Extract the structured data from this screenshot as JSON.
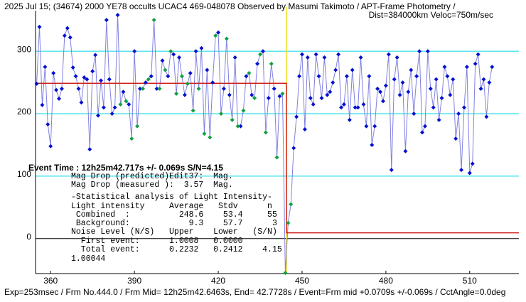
{
  "chart_data": {
    "type": "scatter",
    "title": "2025 Jul 15; (34674) 2000 YE78 occults UCAC4 469-048078 Observed by Masumi Takimoto / APT-Frame Photometry /",
    "subtitle": "Dist=384000km Veloc=750m/sec",
    "event_text": "Event Time : 12h25m42.717s +/- 0.069s S/N=4.15",
    "stats_lines": [
      "Mag Drop (predicted)Edit37:  Mag.",
      "Mag Drop (measured ):  3.57  Mag.",
      "-Statistical analysis of Light Intensity-",
      "Light intensity     Average   Stdv      n",
      " Combined  :          248.6    53.4     55",
      " Background:            9.3    57.7      3",
      "Noise Level (N/S)   Upper    Lower   (S/N)",
      "  First event:      1.0008   0.0000",
      "  Total event:      0.2232   0.2412    4.15",
      "1.00044"
    ],
    "footer": "Exp=253msec / Frm No.444.0 / Frm Mid= 12h25m42.6463s, End= 42.7728s / Event=Frm mid +0.0709s +/-0.069s / CctAngle=0.0deg",
    "xlim": [
      354.6,
      527.6
    ],
    "ylim": [
      -56,
      365
    ],
    "xticks": [
      360,
      390,
      420,
      450,
      480,
      510
    ],
    "yticks": [
      0,
      100,
      200,
      300
    ],
    "grid_color": "#00d8e8",
    "event_x": 444.4,
    "event_color": "#f0e020",
    "model": {
      "color": "#d02020",
      "x": [
        354.6,
        444.4,
        444.4,
        527.6
      ],
      "values": [
        248.6,
        248.6,
        9.3,
        9.3
      ]
    },
    "series": [
      {
        "color": "#0010d0",
        "x": [
          355,
          356,
          357,
          358,
          359,
          360,
          361,
          362,
          363,
          364,
          365,
          366,
          367,
          368,
          369,
          370,
          371,
          372,
          373,
          374,
          375,
          376,
          377,
          378,
          379,
          380,
          381,
          382,
          383,
          384,
          386,
          388,
          390,
          392,
          394,
          396,
          398,
          400,
          402,
          404,
          406,
          408,
          410,
          412,
          414,
          416,
          418,
          420,
          422,
          424,
          426,
          428,
          430,
          432,
          434,
          436,
          438,
          440,
          442,
          447,
          448,
          449,
          450,
          451,
          452,
          453,
          454,
          455,
          456,
          457,
          458,
          459,
          460,
          461,
          462,
          463,
          464,
          465,
          466,
          467,
          468,
          469,
          470,
          471,
          472,
          473,
          474,
          475,
          476,
          477,
          478,
          479,
          480,
          481,
          482,
          483,
          484,
          485,
          486,
          487,
          488,
          489,
          490,
          491,
          492,
          493,
          494,
          495,
          496,
          497,
          498,
          499,
          500,
          501,
          502,
          503,
          504,
          505,
          506,
          507,
          508,
          509,
          510,
          511,
          512,
          513,
          514,
          515,
          516,
          517,
          518
        ],
        "values": [
          248,
          339,
          214,
          275,
          183,
          148,
          265,
          238,
          224,
          240,
          325,
          337,
          322,
          274,
          260,
          240,
          218,
          258,
          255,
          143,
          268,
          294,
          197,
          253,
          210,
          350,
          255,
          200,
          210,
          358,
          235,
          215,
          300,
          240,
          250,
          260,
          240,
          285,
          260,
          295,
          290,
          230,
          265,
          300,
          305,
          270,
          250,
          330,
          240,
          230,
          290,
          180,
          260,
          230,
          280,
          300,
          225,
          240,
          228,
          145,
          195,
          260,
          295,
          175,
          290,
          225,
          215,
          295,
          260,
          225,
          290,
          230,
          235,
          250,
          270,
          295,
          210,
          215,
          260,
          190,
          270,
          210,
          210,
          290,
          215,
          180,
          260,
          150,
          180,
          240,
          235,
          220,
          245,
          295,
          110,
          255,
          290,
          230,
          250,
          140,
          235,
          270,
          200,
          260,
          300,
          170,
          180,
          300,
          240,
          210,
          255,
          190,
          225,
          275,
          260,
          230,
          255,
          160,
          200,
          110,
          210,
          275,
          105,
          120,
          280,
          295,
          240,
          255,
          195,
          250,
          275
        ]
      },
      {
        "color": "#10a040",
        "x": [
          385,
          387,
          389,
          391,
          393,
          395,
          397,
          399,
          401,
          403,
          405,
          407,
          409,
          411,
          413,
          415,
          417,
          419,
          421,
          423,
          425,
          427,
          429,
          431,
          433,
          435,
          437,
          439,
          441,
          443,
          444,
          445,
          446
        ],
        "values": [
          215,
          220,
          160,
          180,
          240,
          255,
          350,
          240,
          270,
          300,
          232,
          260,
          248,
          205,
          240,
          168,
          162,
          325,
          200,
          320,
          190,
          180,
          205,
          265,
          225,
          295,
          170,
          280,
          130,
          232,
          -55,
          25,
          55
        ]
      }
    ]
  }
}
